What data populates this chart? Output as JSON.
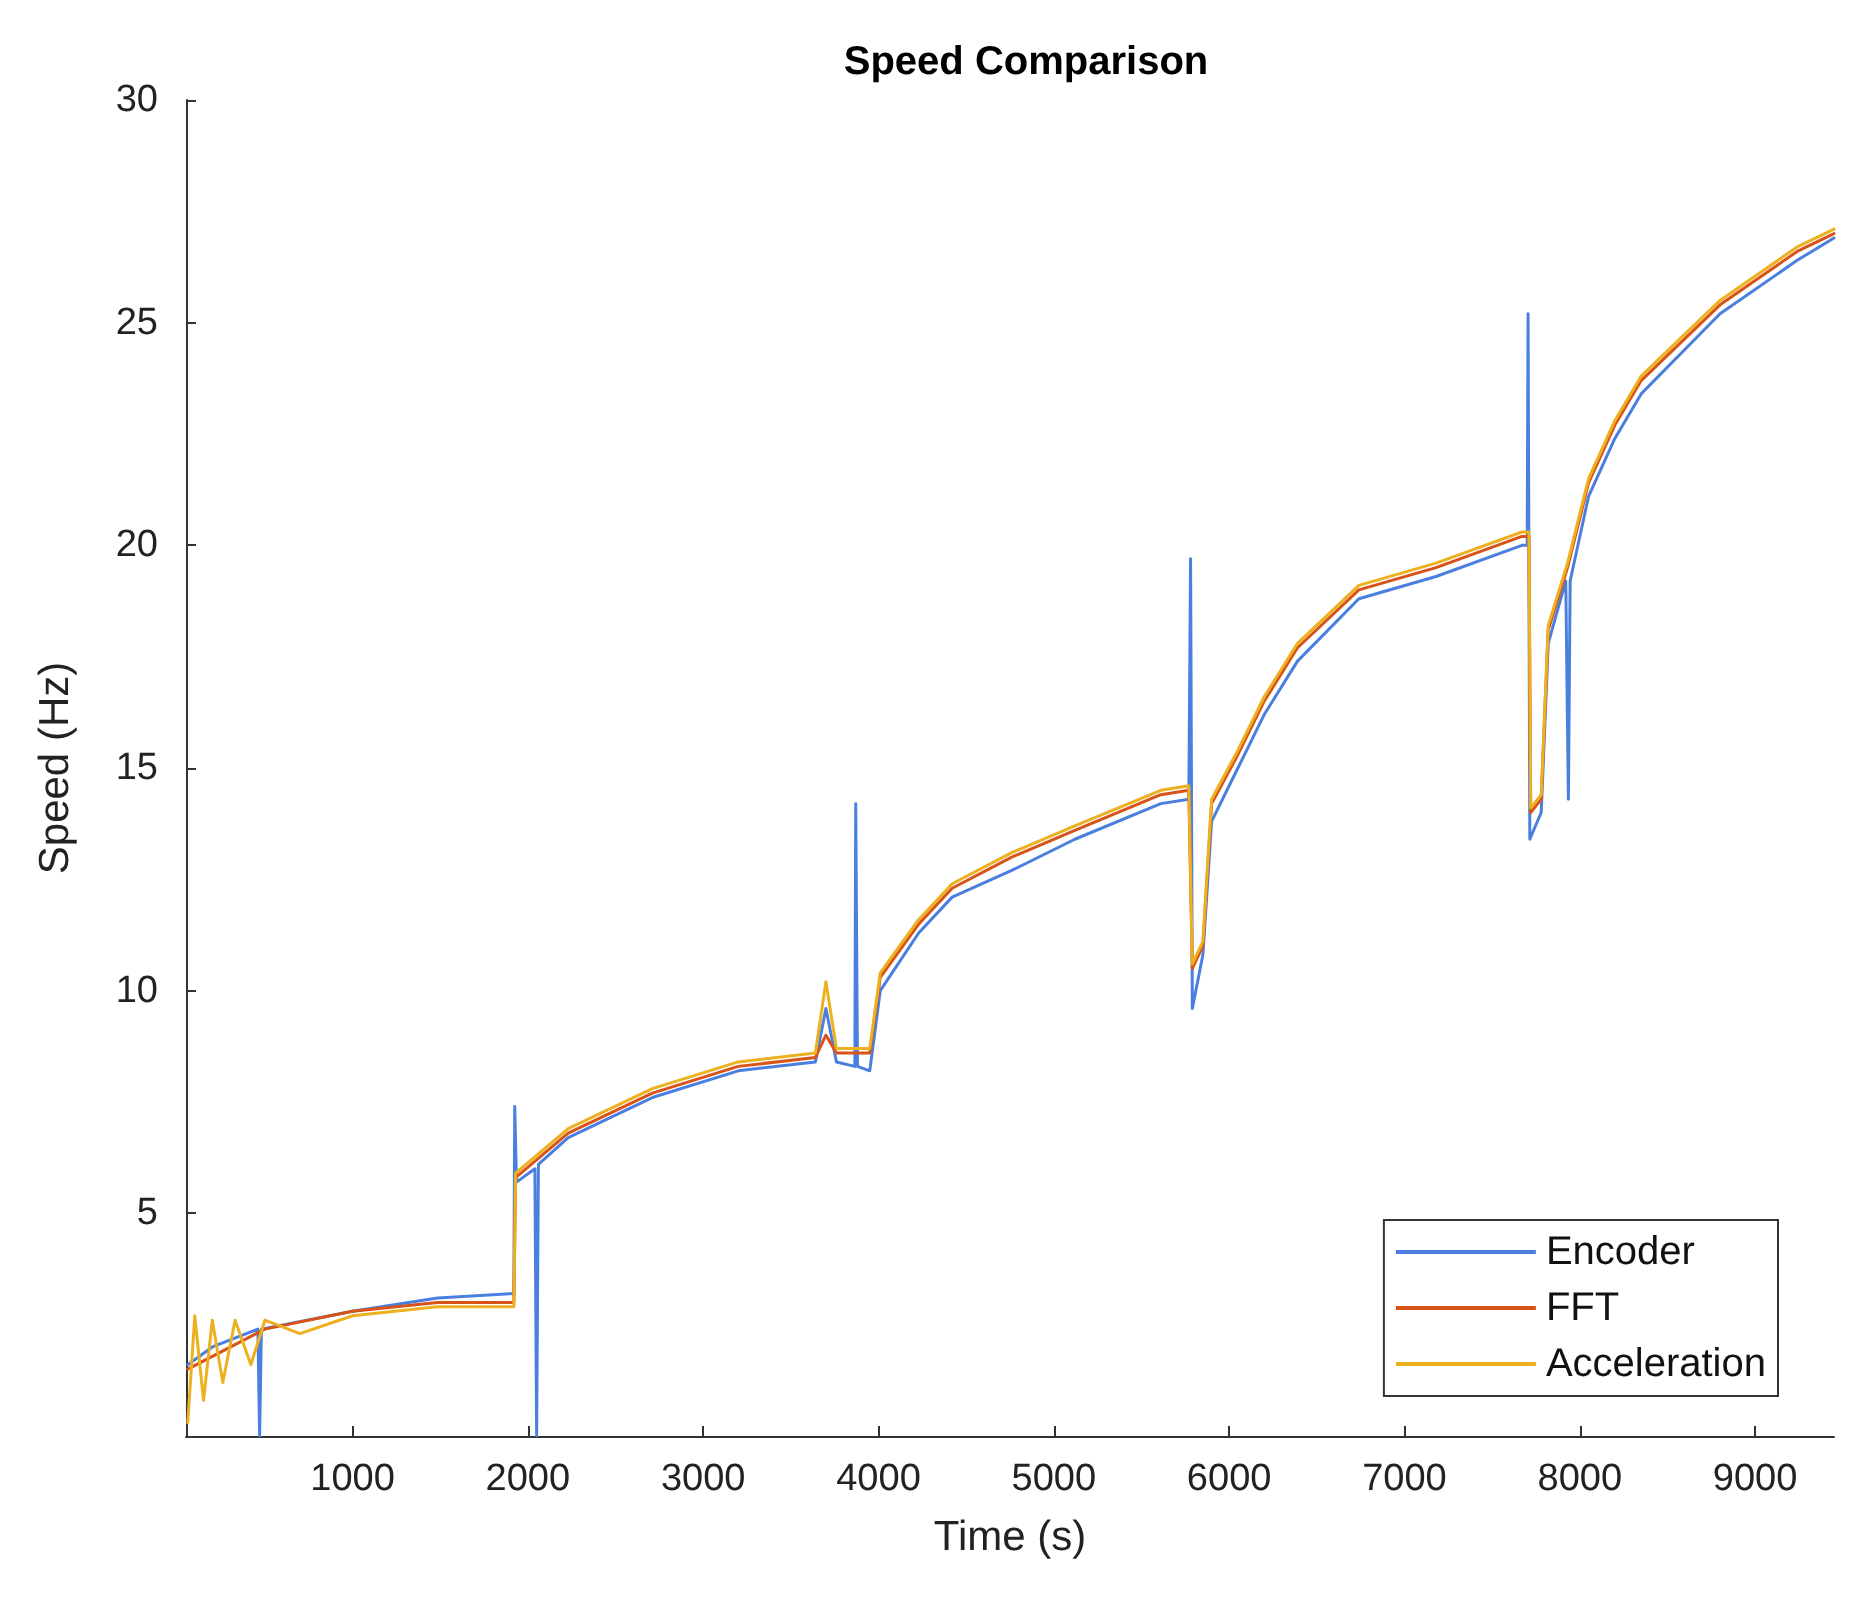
{
  "chart_data": {
    "type": "line",
    "title": "Speed Comparison",
    "xlabel": "Time (s)",
    "ylabel": "Speed (Hz)",
    "xlim": [
      50,
      9450
    ],
    "xticks": [
      1000,
      2000,
      3000,
      4000,
      5000,
      6000,
      7000,
      8000,
      9000
    ],
    "ylim": [
      0,
      30
    ],
    "yticks": [
      5,
      10,
      15,
      20,
      25,
      30
    ],
    "grid": false,
    "legend": "bottom right",
    "marker": "none",
    "line_style": "solid",
    "series": [
      {
        "name": "Encoder",
        "color": "#4a7fe0",
        "x": [
          60,
          200,
          460,
          470,
          480,
          1000,
          1485,
          1920,
          1925,
          1935,
          2040,
          2050,
          2060,
          2230,
          2710,
          3200,
          3640,
          3700,
          3760,
          3865,
          3870,
          3880,
          3950,
          4010,
          4230,
          4420,
          4760,
          5120,
          5610,
          5770,
          5780,
          5790,
          5850,
          5900,
          6050,
          6200,
          6390,
          6740,
          7180,
          7670,
          7700,
          7705,
          7715,
          7780,
          7820,
          7920,
          7935,
          7945,
          8050,
          8200,
          8350,
          8800,
          9240,
          9450
        ],
        "values": [
          1.6,
          2.0,
          2.4,
          0,
          2.4,
          2.8,
          3.1,
          3.2,
          7.4,
          5.7,
          6.0,
          0,
          6.1,
          6.7,
          7.6,
          8.2,
          8.4,
          9.6,
          8.4,
          8.3,
          14.2,
          8.3,
          8.2,
          10.0,
          11.3,
          12.1,
          12.7,
          13.4,
          14.2,
          14.3,
          19.7,
          9.6,
          10.8,
          13.8,
          15.0,
          16.2,
          17.4,
          18.8,
          19.3,
          20.0,
          20.0,
          25.2,
          13.4,
          14.0,
          17.8,
          19.2,
          14.3,
          19.2,
          21.1,
          22.4,
          23.4,
          25.2,
          26.4,
          26.9
        ]
      },
      {
        "name": "FFT",
        "color": "#d95319",
        "x": [
          60,
          500,
          1000,
          1485,
          1920,
          1930,
          2230,
          2710,
          3200,
          3640,
          3700,
          3760,
          3950,
          4010,
          4230,
          4420,
          4760,
          5120,
          5610,
          5770,
          5790,
          5850,
          5900,
          6050,
          6200,
          6390,
          6740,
          7180,
          7670,
          7710,
          7720,
          7780,
          7820,
          7930,
          8050,
          8200,
          8350,
          8800,
          9240,
          9450
        ],
        "values": [
          1.5,
          2.4,
          2.8,
          3.0,
          3.0,
          5.8,
          6.8,
          7.7,
          8.3,
          8.5,
          9.0,
          8.6,
          8.6,
          10.3,
          11.5,
          12.3,
          13.0,
          13.6,
          14.4,
          14.5,
          10.5,
          11.0,
          14.2,
          15.3,
          16.5,
          17.7,
          19.0,
          19.5,
          20.2,
          20.2,
          14.0,
          14.3,
          18.1,
          19.5,
          21.4,
          22.7,
          23.7,
          25.4,
          26.6,
          27.0
        ]
      },
      {
        "name": "Acceleration",
        "color": "#edb120",
        "x": [
          60,
          100,
          150,
          200,
          260,
          330,
          420,
          500,
          700,
          1000,
          1485,
          1920,
          1930,
          2230,
          2710,
          3200,
          3640,
          3700,
          3760,
          3950,
          4010,
          4230,
          4420,
          4760,
          5120,
          5610,
          5770,
          5790,
          5850,
          5900,
          6050,
          6200,
          6390,
          6740,
          7180,
          7670,
          7710,
          7720,
          7780,
          7820,
          7930,
          8050,
          8200,
          8350,
          8800,
          9240,
          9450
        ],
        "values": [
          0.3,
          2.7,
          0.8,
          2.6,
          1.2,
          2.6,
          1.6,
          2.6,
          2.3,
          2.7,
          2.9,
          2.9,
          5.9,
          6.9,
          7.8,
          8.4,
          8.6,
          10.2,
          8.7,
          8.7,
          10.4,
          11.6,
          12.4,
          13.1,
          13.7,
          14.5,
          14.6,
          10.6,
          11.1,
          14.3,
          15.4,
          16.6,
          17.8,
          19.1,
          19.6,
          20.3,
          20.3,
          14.1,
          14.4,
          18.2,
          19.6,
          21.5,
          22.8,
          23.8,
          25.5,
          26.7,
          27.1
        ]
      }
    ]
  }
}
